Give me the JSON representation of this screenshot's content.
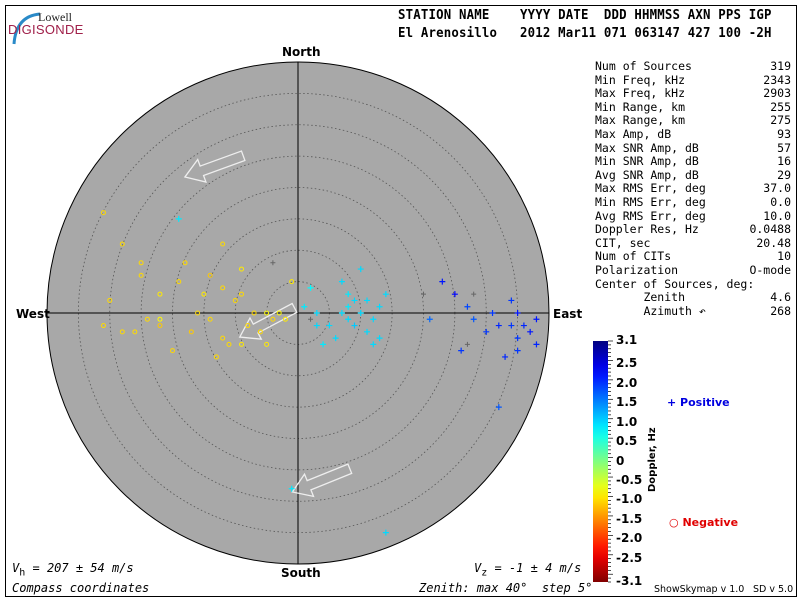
{
  "logo": {
    "top": "Lowell",
    "main": "DIGISONDE"
  },
  "header": {
    "labels": "STATION NAME    YYYY DATE  DDD HHMMSS AXN PPS IGP",
    "values": "El Arenosillo   2012 Mar11 071 063147 427 100 -2H"
  },
  "stats": [
    {
      "label": "Num of Sources",
      "value": "319"
    },
    {
      "label": "Min Freq, kHz",
      "value": "2343"
    },
    {
      "label": "Max Freq, kHz",
      "value": "2903"
    },
    {
      "label": "Min Range, km",
      "value": "255"
    },
    {
      "label": "Max Range, km",
      "value": "275"
    },
    {
      "label": "Max Amp, dB",
      "value": "93"
    },
    {
      "label": "Max SNR Amp, dB",
      "value": "57"
    },
    {
      "label": "Min SNR Amp, dB",
      "value": "16"
    },
    {
      "label": "Avg SNR Amp, dB",
      "value": "29"
    },
    {
      "label": "Max RMS Err, deg",
      "value": "37.0"
    },
    {
      "label": "Min RMS Err, deg",
      "value": "0.0"
    },
    {
      "label": "Avg RMS Err, deg",
      "value": "10.0"
    },
    {
      "label": "Doppler Res, Hz",
      "value": "0.0488"
    },
    {
      "label": "CIT, sec",
      "value": "20.48"
    },
    {
      "label": "Num of CITs",
      "value": "10"
    },
    {
      "label": "Polarization",
      "value": "O-mode"
    },
    {
      "label": "Center of Sources, deg:",
      "value": ""
    },
    {
      "label": "       Zenith",
      "value": "4.6"
    },
    {
      "label": "       Azimuth ↶",
      "value": "268"
    }
  ],
  "footer": {
    "vh": "V",
    "vh_sub": "h",
    "vh_value": " = 207 ± 54 m/s",
    "vz": "V",
    "vz_sub": "z",
    "vz_value": " = -1 ± 4 m/s",
    "coords": "Compass coordinates",
    "zenith": "Zenith: max 40°  step 5°",
    "version1": "ShowSkymap v 1.0",
    "version2": "SD v 5.0"
  },
  "chart_data": {
    "type": "scatter",
    "projection": "polar skymap",
    "directions": {
      "north": "North",
      "south": "South",
      "east": "East",
      "west": "West"
    },
    "zenith_max_deg": 40,
    "zenith_step_deg": 5,
    "colors": {
      "plot_bg": "#a8a8a8",
      "ring": "#555555"
    },
    "colorbar": {
      "label": "Doppler, Hz",
      "min": -3.1,
      "max": 3.1,
      "colormap": "jet",
      "ticks": [
        "3.1",
        "2.5",
        "2.0",
        "1.5",
        "1.0",
        "0.5",
        "0",
        "-0.5",
        "-1.0",
        "-1.5",
        "-2.0",
        "-2.5",
        "-3.1"
      ]
    },
    "legend": {
      "positive": "Positive",
      "negative": "Negative",
      "positive_color": "#0000e0",
      "negative_color": "#e00000"
    },
    "points_note_units": "east/north offset in zenith degrees, doppler in Hz",
    "points": [
      [
        -28,
        11,
        -1.0
      ],
      [
        -25,
        6,
        -1.0
      ],
      [
        -22,
        3,
        -0.9
      ],
      [
        -22,
        -2,
        -1.1
      ],
      [
        -28,
        -3,
        -1.0
      ],
      [
        -22,
        -1,
        -0.8
      ],
      [
        -19,
        5,
        -1.0
      ],
      [
        -18,
        8,
        -1.0
      ],
      [
        -15,
        3,
        -0.9
      ],
      [
        -14,
        6,
        -1.1
      ],
      [
        -12,
        4,
        -1.0
      ],
      [
        -10,
        2,
        -1.0
      ],
      [
        -9,
        7,
        -0.9
      ],
      [
        -8,
        -2,
        -1.0
      ],
      [
        -6,
        -3,
        -1.0
      ],
      [
        -5,
        0,
        -0.8
      ],
      [
        -14,
        -1,
        -1.0
      ],
      [
        -17,
        -3,
        -1.1
      ],
      [
        -11,
        -5,
        -1.0
      ],
      [
        -9,
        -5,
        -0.9
      ],
      [
        -7,
        0,
        -1.0
      ],
      [
        -3,
        0,
        -0.8
      ],
      [
        -2,
        -1,
        -0.9
      ],
      [
        -30,
        2,
        -1.0
      ],
      [
        -31,
        -2,
        -1.0
      ],
      [
        -26,
        -3,
        -1.0
      ],
      [
        -12,
        11,
        -1.0
      ],
      [
        -13,
        -7,
        -1.0
      ],
      [
        -20,
        -6,
        -1.0
      ],
      [
        -5,
        -5,
        -0.9
      ],
      [
        -31,
        16,
        -1.0
      ],
      [
        -25,
        8,
        -1.0
      ],
      [
        -16,
        0,
        -1.0
      ],
      [
        -1,
        5,
        -0.9
      ],
      [
        -4,
        -1,
        -1.0
      ],
      [
        -12,
        -4,
        -1.0
      ],
      [
        -9,
        3,
        -1.0
      ],
      [
        -24,
        -1,
        -1.0
      ],
      [
        1,
        1,
        0.9
      ],
      [
        3,
        0,
        1.0
      ],
      [
        5,
        -2,
        1.0
      ],
      [
        7,
        0,
        1.0
      ],
      [
        8,
        1,
        0.9
      ],
      [
        9,
        2,
        1.0
      ],
      [
        10,
        0,
        1.0
      ],
      [
        9,
        -2,
        1.1
      ],
      [
        11,
        -3,
        1.0
      ],
      [
        12,
        -1,
        1.0
      ],
      [
        8,
        3,
        0.9
      ],
      [
        7,
        5,
        1.0
      ],
      [
        13,
        1,
        1.0
      ],
      [
        14,
        3,
        1.0
      ],
      [
        12,
        -5,
        1.0
      ],
      [
        4,
        -5,
        0.9
      ],
      [
        6,
        -4,
        1.0
      ],
      [
        3,
        -2,
        1.0
      ],
      [
        2,
        4,
        0.8
      ],
      [
        10,
        7,
        1.0
      ],
      [
        8,
        -1,
        1.0
      ],
      [
        11,
        2,
        1.0
      ],
      [
        -19,
        15,
        0.9
      ],
      [
        -1,
        -28,
        0.9
      ],
      [
        14,
        -35,
        1.0
      ],
      [
        13,
        -4,
        1.0
      ],
      [
        23,
        5,
        2.2
      ],
      [
        25,
        3,
        2.3
      ],
      [
        31,
        0,
        2.0
      ],
      [
        32,
        -2,
        2.1
      ],
      [
        30,
        -3,
        2.0
      ],
      [
        35,
        0,
        2.2
      ],
      [
        36,
        -2,
        2.1
      ],
      [
        35,
        -4,
        2.0
      ],
      [
        37,
        -3,
        2.2
      ],
      [
        38,
        -5,
        2.1
      ],
      [
        34,
        -2,
        2.0
      ],
      [
        28,
        -1,
        1.8
      ],
      [
        27,
        1,
        1.9
      ],
      [
        26,
        -6,
        2.0
      ],
      [
        21,
        -1,
        1.7
      ],
      [
        33,
        -7,
        2.1
      ],
      [
        35,
        -6,
        2.0
      ],
      [
        32,
        -15,
        1.8
      ],
      [
        38,
        -1,
        2.2
      ],
      [
        34,
        2,
        2.0
      ]
    ],
    "gray_points": [
      [
        20,
        3
      ],
      [
        28,
        3
      ],
      [
        27,
        -5
      ],
      [
        -4,
        8
      ],
      [
        2,
        -1
      ]
    ]
  }
}
